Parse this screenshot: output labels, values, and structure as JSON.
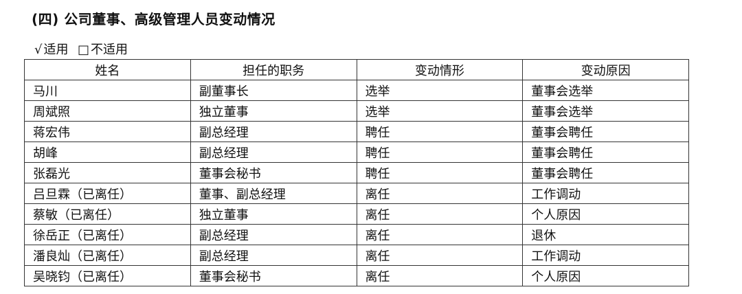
{
  "section_title": "(四) 公司董事、高级管理人员变动情况",
  "applicability": {
    "applicable_mark": "√",
    "applicable_label": "适用",
    "not_applicable_mark": "□",
    "not_applicable_label": "不适用"
  },
  "table": {
    "headers": [
      "姓名",
      "担任的职务",
      "变动情形",
      "变动原因"
    ],
    "rows": [
      [
        "马川",
        "副董事长",
        "选举",
        "董事会选举"
      ],
      [
        "周斌照",
        "独立董事",
        "选举",
        "董事会选举"
      ],
      [
        "蒋宏伟",
        "副总经理",
        "聘任",
        "董事会聘任"
      ],
      [
        "胡峰",
        "副总经理",
        "聘任",
        "董事会聘任"
      ],
      [
        "张磊光",
        "董事会秘书",
        "聘任",
        "董事会聘任"
      ],
      [
        "吕旦霖（已离任）",
        "董事、副总经理",
        "离任",
        "工作调动"
      ],
      [
        "蔡敏（已离任）",
        "独立董事",
        "离任",
        "个人原因"
      ],
      [
        "徐岳正（已离任）",
        "副总经理",
        "离任",
        "退休"
      ],
      [
        "潘良灿（已离任）",
        "副总经理",
        "离任",
        "工作调动"
      ],
      [
        "吴晓钧（已离任）",
        "董事会秘书",
        "离任",
        "个人原因"
      ]
    ]
  }
}
